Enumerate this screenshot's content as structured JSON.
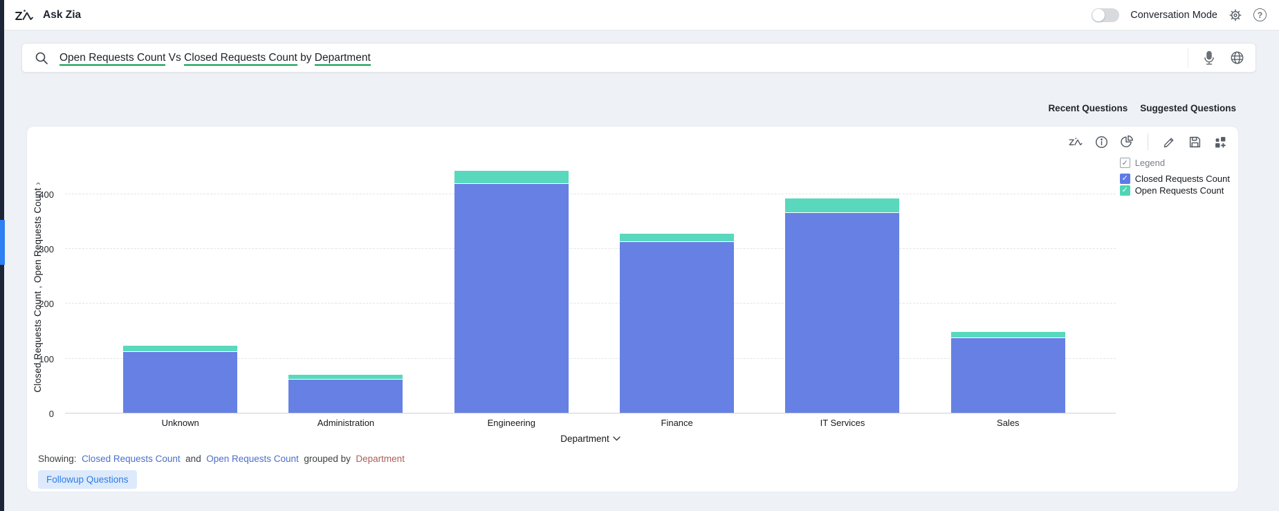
{
  "topbar": {
    "app_title": "Ask Zia",
    "conversation_mode_label": "Conversation Mode",
    "conversation_mode_on": false,
    "icons": [
      "zia-logo-icon",
      "gear-icon",
      "help-icon"
    ]
  },
  "search": {
    "segments": [
      {
        "text": "Open Requests Count",
        "field": true
      },
      {
        "text": " Vs ",
        "field": false
      },
      {
        "text": "Closed Requests Count",
        "field": true
      },
      {
        "text": " by ",
        "field": false
      },
      {
        "text": "Department",
        "field": true
      }
    ],
    "icons": [
      "search-icon",
      "mic-icon",
      "globe-icon"
    ],
    "underline_color": "#0a9e4a"
  },
  "questions_nav": {
    "recent_label": "Recent Questions",
    "suggested_label": "Suggested Questions"
  },
  "chart_card": {
    "toolbar_icons": [
      "zia-icon",
      "info-icon",
      "pie-chart-icon",
      "edit-pencil-icon",
      "save-icon",
      "add-to-dashboard-icon"
    ],
    "legend": {
      "title": "Legend",
      "items": [
        {
          "label": "Closed Requests Count",
          "color": "#5d7ae8"
        },
        {
          "label": "Open Requests Count",
          "color": "#4fd5b6"
        }
      ]
    },
    "footer": {
      "showing_label": "Showing:",
      "series_links": [
        "Closed Requests Count",
        "Open Requests Count"
      ],
      "and_text": "and",
      "grouped_by_text": "grouped by",
      "group_link": "Department",
      "followup_button_label": "Followup Questions"
    }
  },
  "chart_data": {
    "type": "bar",
    "stacked": true,
    "categories": [
      "Unknown",
      "Administration",
      "Engineering",
      "Finance",
      "IT Services",
      "Sales"
    ],
    "series": [
      {
        "name": "Closed Requests Count",
        "color": "#6681e3",
        "values": [
          112,
          62,
          418,
          313,
          365,
          138
        ]
      },
      {
        "name": "Open Requests Count",
        "color": "#59d8bd",
        "values": [
          12,
          8,
          25,
          15,
          27,
          11
        ]
      }
    ],
    "title": "",
    "xlabel": "Department",
    "ylabel": "Closed Requests Count , Open Requests Count",
    "yticks": [
      0,
      100,
      200,
      300,
      400
    ],
    "ylim": [
      0,
      460
    ],
    "grid": "horizontal-dashed",
    "legend_position": "top-right"
  }
}
